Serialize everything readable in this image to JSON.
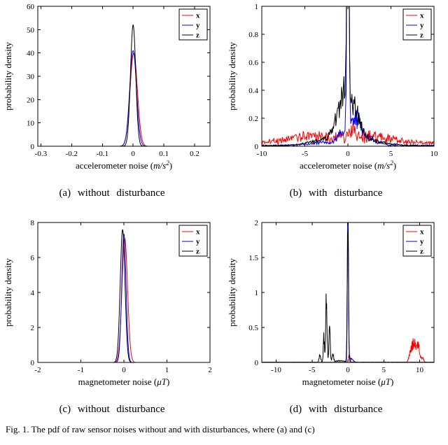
{
  "figure": {
    "caption": "Fig. 1.  The pdf of raw sensor noises without and with disturbances, where (a) and (c)"
  },
  "colors": {
    "x": "#ff0000",
    "y": "#0000ff",
    "z": "#000000"
  },
  "chart_data": [
    {
      "id": "a",
      "type": "line",
      "caption": "(a) without disturbance",
      "ylabel": "probability density",
      "xlabel_parts": [
        {
          "t": "accelerometer noise ("
        },
        {
          "t": "m/s",
          "i": true
        },
        {
          "t": "2",
          "i": true,
          "sup": true
        },
        {
          "t": ")"
        }
      ],
      "xlim": [
        -0.31,
        0.25
      ],
      "ylim": [
        0,
        60
      ],
      "samples": 601,
      "xticks": [
        {
          "v": -0.3,
          "l": "-0.3"
        },
        {
          "v": -0.2,
          "l": "-0.2"
        },
        {
          "v": -0.1,
          "l": "-0.1"
        },
        {
          "v": 0,
          "l": "0"
        },
        {
          "v": 0.1,
          "l": "0.1"
        },
        {
          "v": 0.2,
          "l": "0.2"
        }
      ],
      "yticks": [
        {
          "v": 0,
          "l": "0"
        },
        {
          "v": 10,
          "l": "10"
        },
        {
          "v": 20,
          "l": "20"
        },
        {
          "v": 30,
          "l": "30"
        },
        {
          "v": 40,
          "l": "40"
        },
        {
          "v": 50,
          "l": "50"
        },
        {
          "v": 60,
          "l": "60"
        }
      ],
      "legend": [
        {
          "label": "x",
          "color": "#ff0000"
        },
        {
          "label": "y",
          "color": "#0000ff"
        },
        {
          "label": "z",
          "color": "#000000"
        }
      ],
      "series": [
        {
          "name": "x",
          "color": "#ff0000",
          "seed": 11,
          "components": [
            [
              0.002,
              0.012,
              40
            ]
          ],
          "noise_rel": 0,
          "noise_abs": 0
        },
        {
          "name": "y",
          "color": "#0000ff",
          "seed": 12,
          "components": [
            [
              0.0,
              0.011,
              41
            ]
          ],
          "noise_rel": 0,
          "noise_abs": 0
        },
        {
          "name": "z",
          "color": "#000000",
          "seed": 13,
          "components": [
            [
              0.0,
              0.0085,
              52
            ]
          ],
          "noise_rel": 0,
          "noise_abs": 0
        }
      ]
    },
    {
      "id": "b",
      "type": "line",
      "caption": "(b) with disturbance",
      "ylabel": "probability density",
      "xlabel_parts": [
        {
          "t": "accelerometer noise ("
        },
        {
          "t": "m/s",
          "i": true
        },
        {
          "t": "2",
          "i": true,
          "sup": true
        },
        {
          "t": ")"
        }
      ],
      "xlim": [
        -10,
        10
      ],
      "ylim": [
        0,
        1
      ],
      "samples": 301,
      "xticks": [
        {
          "v": -10,
          "l": "-10"
        },
        {
          "v": -5,
          "l": "-5"
        },
        {
          "v": 0,
          "l": "0"
        },
        {
          "v": 5,
          "l": "5"
        },
        {
          "v": 10,
          "l": "10"
        }
      ],
      "yticks": [
        {
          "v": 0,
          "l": "0"
        },
        {
          "v": 0.2,
          "l": "0.2"
        },
        {
          "v": 0.4,
          "l": "0.4"
        },
        {
          "v": 0.6,
          "l": "0.6"
        },
        {
          "v": 0.8,
          "l": "0.8"
        },
        {
          "v": 1,
          "l": "1"
        }
      ],
      "legend": [
        {
          "label": "x",
          "color": "#ff0000"
        },
        {
          "label": "y",
          "color": "#0000ff"
        },
        {
          "label": "z",
          "color": "#000000"
        }
      ],
      "series": [
        {
          "name": "x",
          "color": "#ff0000",
          "seed": 21,
          "components": [
            [
              -1,
              6,
              0.045
            ],
            [
              0.5,
              0.4,
              0.07
            ],
            [
              3,
              2,
              0.02
            ],
            [
              -5,
              2,
              0.02
            ]
          ],
          "noise_rel": 0.7,
          "noise_abs": 0.025
        },
        {
          "name": "y",
          "color": "#0000ff",
          "seed": 22,
          "components": [
            [
              0,
              0.11,
              1.8
            ],
            [
              0.8,
              0.7,
              0.16
            ],
            [
              -0.8,
              0.5,
              0.07
            ],
            [
              2,
              1.2,
              0.05
            ],
            [
              -3,
              1.5,
              0.02
            ]
          ],
          "noise_rel": 0.4,
          "noise_abs": 0.012
        },
        {
          "name": "z",
          "color": "#000000",
          "seed": 23,
          "components": [
            [
              0,
              0.12,
              1.8
            ],
            [
              -0.55,
              0.8,
              0.27
            ],
            [
              0.6,
              0.9,
              0.18
            ],
            [
              -2.5,
              2,
              0.04
            ],
            [
              2.5,
              2,
              0.03
            ]
          ],
          "noise_rel": 0.35,
          "noise_abs": 0.008
        }
      ]
    },
    {
      "id": "c",
      "type": "line",
      "caption": "(c) without disturbance",
      "ylabel": "probability density",
      "xlabel_parts": [
        {
          "t": "magnetometer noise ("
        },
        {
          "t": "μT",
          "i": true
        },
        {
          "t": ")"
        }
      ],
      "xlim": [
        -2,
        2
      ],
      "ylim": [
        0,
        8
      ],
      "samples": 601,
      "xticks": [
        {
          "v": -2,
          "l": "-2"
        },
        {
          "v": -1,
          "l": "-1"
        },
        {
          "v": 0,
          "l": "0"
        },
        {
          "v": 1,
          "l": "1"
        },
        {
          "v": 2,
          "l": "2"
        }
      ],
      "yticks": [
        {
          "v": 0,
          "l": "0"
        },
        {
          "v": 2,
          "l": "2"
        },
        {
          "v": 4,
          "l": "4"
        },
        {
          "v": 6,
          "l": "6"
        },
        {
          "v": 8,
          "l": "8"
        }
      ],
      "legend": [
        {
          "label": "x",
          "color": "#ff0000"
        },
        {
          "label": "y",
          "color": "#0000ff"
        },
        {
          "label": "z",
          "color": "#000000"
        }
      ],
      "series": [
        {
          "name": "x",
          "color": "#ff0000",
          "seed": 31,
          "components": [
            [
              0.02,
              0.065,
              7.1
            ]
          ],
          "noise_rel": 0,
          "noise_abs": 0
        },
        {
          "name": "y",
          "color": "#0000ff",
          "seed": 32,
          "components": [
            [
              0.0,
              0.05,
              7.35
            ]
          ],
          "noise_rel": 0,
          "noise_abs": 0
        },
        {
          "name": "z",
          "color": "#000000",
          "seed": 33,
          "components": [
            [
              -0.03,
              0.055,
              7.6
            ]
          ],
          "noise_rel": 0,
          "noise_abs": 0
        }
      ]
    },
    {
      "id": "d",
      "type": "line",
      "caption": "(d) with disturbance",
      "ylabel": "probability density",
      "xlabel_parts": [
        {
          "t": "magnetometer noise ("
        },
        {
          "t": "μT",
          "i": true
        },
        {
          "t": ")"
        }
      ],
      "xlim": [
        -12,
        12
      ],
      "ylim": [
        0,
        2
      ],
      "samples": 601,
      "xticks": [
        {
          "v": -10,
          "l": "-10"
        },
        {
          "v": -5,
          "l": "-5"
        },
        {
          "v": 0,
          "l": "0"
        },
        {
          "v": 5,
          "l": "5"
        },
        {
          "v": 10,
          "l": "10"
        }
      ],
      "yticks": [
        {
          "v": 0,
          "l": "0"
        },
        {
          "v": 0.5,
          "l": "0.5"
        },
        {
          "v": 1,
          "l": "1"
        },
        {
          "v": 1.5,
          "l": "1.5"
        },
        {
          "v": 2,
          "l": "2"
        }
      ],
      "legend": [
        {
          "label": "x",
          "color": "#ff0000"
        },
        {
          "label": "y",
          "color": "#0000ff"
        },
        {
          "label": "z",
          "color": "#000000"
        }
      ],
      "series": [
        {
          "name": "x",
          "color": "#ff0000",
          "seed": 41,
          "components": [
            [
              9.2,
              0.25,
              0.28
            ],
            [
              9.8,
              0.2,
              0.22
            ],
            [
              8.7,
              0.2,
              0.12
            ],
            [
              10.4,
              0.15,
              0.07
            ],
            [
              0.2,
              0.1,
              0.1
            ]
          ],
          "noise_rel": 0.35,
          "noise_abs": 0.004
        },
        {
          "name": "y",
          "color": "#0000ff",
          "seed": 42,
          "components": [
            [
              0,
              0.07,
              2.5
            ],
            [
              0.4,
              0.3,
              0.05
            ]
          ],
          "noise_rel": 0.2,
          "noise_abs": 0.003
        },
        {
          "name": "z",
          "color": "#000000",
          "seed": 43,
          "components": [
            [
              0,
              0.09,
              1.9
            ],
            [
              -3.0,
              0.1,
              0.85
            ],
            [
              -3.35,
              0.08,
              0.35
            ],
            [
              -2.55,
              0.09,
              0.45
            ],
            [
              -2.1,
              0.1,
              0.12
            ],
            [
              -3.9,
              0.12,
              0.1
            ],
            [
              -1.2,
              0.8,
              0.02
            ]
          ],
          "noise_rel": 0.25,
          "noise_abs": 0.004
        }
      ]
    }
  ]
}
